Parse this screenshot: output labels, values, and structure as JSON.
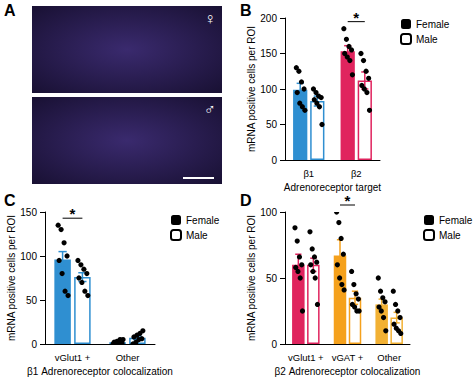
{
  "chart_data": [
    {
      "type": "image",
      "title": "A",
      "annotations": [
        "♀",
        "♂"
      ]
    },
    {
      "type": "bar",
      "title": "B",
      "x_label": "Adrenoreceptor target",
      "y_label": "mRNA positive cells per ROI",
      "categories": [
        "β1",
        "β2"
      ],
      "colors": [
        "#2f8fd1",
        "#e0245e"
      ],
      "series": [
        {
          "name": "Female",
          "values": [
            99,
            153
          ],
          "errors": [
            9,
            8
          ],
          "points": [
            [
              130,
              125,
              110,
              100,
              95,
              80,
              75,
              70
            ],
            [
              185,
              170,
              160,
              155,
              150,
              145,
              140,
              120
            ]
          ]
        },
        {
          "name": "Male",
          "values": [
            83,
            112
          ],
          "errors": [
            7,
            12
          ],
          "points": [
            [
              100,
              95,
              90,
              88,
              85,
              80,
              75,
              50
            ],
            [
              150,
              140,
              125,
              115,
              105,
              100,
              95,
              70
            ]
          ]
        }
      ],
      "ylim": [
        0,
        200
      ],
      "yticks": [
        0,
        50,
        100,
        150,
        200
      ],
      "grid": false,
      "legend": "upper right",
      "significance": [
        {
          "category": "β2",
          "label": "*"
        }
      ]
    },
    {
      "type": "bar",
      "title": "C",
      "x_label": "β1 Adrenoreceptor colocalization",
      "y_label": "mRNA positive cells per ROI",
      "categories": [
        "vGlut1 +",
        "Other"
      ],
      "colors": [
        "#2f8fd1",
        "#2f8fd1"
      ],
      "series": [
        {
          "name": "Female",
          "values": [
            96,
            2
          ],
          "errors": [
            9,
            1
          ],
          "points": [
            [
              135,
              130,
              115,
              100,
              95,
              80,
              60,
              55
            ],
            [
              0,
              0,
              0,
              1,
              2,
              3,
              5,
              5
            ]
          ]
        },
        {
          "name": "Male",
          "values": [
            76,
            7
          ],
          "errors": [
            5,
            2
          ],
          "points": [
            [
              95,
              90,
              85,
              80,
              75,
              70,
              60,
              55
            ],
            [
              0,
              2,
              5,
              6,
              8,
              10,
              12,
              15
            ]
          ]
        }
      ],
      "ylim": [
        0,
        150
      ],
      "yticks": [
        0,
        50,
        100,
        150
      ],
      "grid": false,
      "legend": "upper right",
      "significance": [
        {
          "category": "vGlut1 +",
          "label": "*"
        }
      ]
    },
    {
      "type": "bar",
      "title": "D",
      "x_label": "β2 Adrenoreceptor colocalization",
      "y_label": "mRNA positive cells per ROI",
      "categories": [
        "vGlut1 +",
        "vGAT +",
        "Other"
      ],
      "colors": [
        "#e0245e",
        "#f5a11c",
        "#f2b134"
      ],
      "series": [
        {
          "name": "Female",
          "values": [
            60,
            67,
            30
          ],
          "errors": [
            8,
            12,
            4
          ],
          "points": [
            [
              88,
              78,
              66,
              60,
              58,
              55,
              50,
              25
            ],
            [
              100,
              92,
              80,
              68,
              60,
              50,
              45,
              41
            ],
            [
              50,
              40,
              35,
              32,
              28,
              25,
              20,
              10
            ]
          ]
        },
        {
          "name": "Male",
          "values": [
            60,
            35,
            20
          ],
          "errors": [
            5,
            5,
            4
          ],
          "points": [
            [
              85,
              72,
              66,
              62,
              60,
              55,
              50,
              30
            ],
            [
              55,
              45,
              38,
              34,
              30,
              28,
              25,
              25
            ],
            [
              40,
              30,
              25,
              20,
              15,
              12,
              10,
              8
            ]
          ]
        }
      ],
      "ylim": [
        0,
        100
      ],
      "yticks": [
        0,
        50,
        100
      ],
      "grid": false,
      "legend": "upper right",
      "significance": [
        {
          "category": "vGAT +",
          "label": "*"
        }
      ]
    }
  ]
}
